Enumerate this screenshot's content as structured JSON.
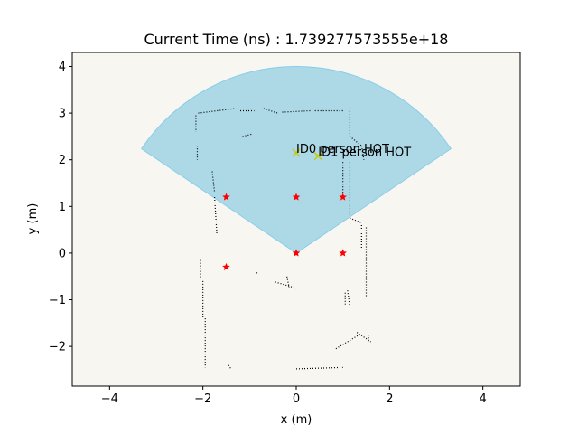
{
  "chart_data": {
    "type": "scatter",
    "title": "Current Time (ns) : 1.739277573555e+18",
    "xlabel": "x (m)",
    "ylabel": "y (m)",
    "xlim": [
      -4.8,
      4.8
    ],
    "ylim": [
      -2.85,
      4.3
    ],
    "xticks": [
      -4,
      -2,
      0,
      2,
      4
    ],
    "yticks": [
      -2,
      -1,
      0,
      1,
      2,
      3,
      4
    ],
    "grid": false,
    "background_color": "#f7f6f1",
    "fov_sector": {
      "center": [
        0,
        0
      ],
      "radius": 4.0,
      "start_angle_deg": 34,
      "end_angle_deg": 146,
      "fill_color": "#add8e6",
      "edge_color": "#87ceeb"
    },
    "star_markers": {
      "color": "#ff0000",
      "points": [
        [
          -1.5,
          1.2
        ],
        [
          0.0,
          1.2
        ],
        [
          1.0,
          1.2
        ],
        [
          -1.5,
          -0.3
        ],
        [
          0.0,
          0.0
        ],
        [
          1.0,
          0.0
        ]
      ]
    },
    "detections": {
      "color": "#c8c800",
      "points": [
        {
          "x": 0.0,
          "y": 2.15,
          "label": "ID0 person HOT"
        },
        {
          "x": 0.47,
          "y": 2.08,
          "label": "ID1 person HOT"
        }
      ]
    },
    "map_points": {
      "color": "#000000",
      "segments": [
        [
          [
            -2.1,
            3.0
          ],
          [
            -1.3,
            3.1
          ]
        ],
        [
          [
            -1.2,
            3.05
          ],
          [
            -0.9,
            3.05
          ]
        ],
        [
          [
            -0.7,
            3.1
          ],
          [
            -0.4,
            3.0
          ]
        ],
        [
          [
            -0.3,
            3.02
          ],
          [
            0.3,
            3.05
          ]
        ],
        [
          [
            0.4,
            3.05
          ],
          [
            1.0,
            3.05
          ]
        ],
        [
          [
            1.15,
            3.1
          ],
          [
            1.15,
            2.55
          ]
        ],
        [
          [
            1.15,
            2.5
          ],
          [
            1.4,
            2.3
          ]
        ],
        [
          [
            1.4,
            2.3
          ],
          [
            1.45,
            2.0
          ]
        ],
        [
          [
            -2.15,
            2.95
          ],
          [
            -2.15,
            2.6
          ]
        ],
        [
          [
            -2.12,
            2.3
          ],
          [
            -2.12,
            2.0
          ]
        ],
        [
          [
            -1.15,
            2.5
          ],
          [
            -0.95,
            2.55
          ]
        ],
        [
          [
            -1.8,
            1.75
          ],
          [
            -1.75,
            1.3
          ]
        ],
        [
          [
            -1.75,
            1.2
          ],
          [
            -1.7,
            0.4
          ]
        ],
        [
          [
            1.0,
            1.95
          ],
          [
            1.0,
            1.25
          ]
        ],
        [
          [
            1.15,
            1.95
          ],
          [
            1.15,
            0.8
          ]
        ],
        [
          [
            1.15,
            0.75
          ],
          [
            1.4,
            0.65
          ]
        ],
        [
          [
            1.4,
            0.6
          ],
          [
            1.4,
            0.1
          ]
        ],
        [
          [
            1.5,
            0.55
          ],
          [
            1.5,
            -0.95
          ]
        ],
        [
          [
            -2.05,
            -0.15
          ],
          [
            -2.05,
            -0.55
          ]
        ],
        [
          [
            -2.0,
            -0.6
          ],
          [
            -2.0,
            -1.4
          ]
        ],
        [
          [
            -1.95,
            -1.4
          ],
          [
            -1.95,
            -2.45
          ]
        ],
        [
          [
            -0.45,
            -0.62
          ],
          [
            0.0,
            -0.75
          ]
        ],
        [
          [
            -0.2,
            -0.5
          ],
          [
            -0.15,
            -0.75
          ]
        ],
        [
          [
            1.1,
            -0.8
          ],
          [
            1.15,
            -1.15
          ]
        ],
        [
          [
            1.05,
            -0.85
          ],
          [
            1.05,
            -1.1
          ]
        ],
        [
          [
            0.85,
            -2.05
          ],
          [
            1.35,
            -1.75
          ]
        ],
        [
          [
            1.3,
            -1.7
          ],
          [
            1.6,
            -1.9
          ]
        ],
        [
          [
            1.55,
            -1.75
          ],
          [
            1.55,
            -1.9
          ]
        ],
        [
          [
            0.0,
            -2.48
          ],
          [
            1.0,
            -2.45
          ]
        ],
        [
          [
            -1.45,
            -2.4
          ],
          [
            -1.4,
            -2.48
          ]
        ],
        [
          [
            -0.85,
            -0.42
          ],
          [
            -0.8,
            -0.45
          ]
        ]
      ]
    }
  }
}
